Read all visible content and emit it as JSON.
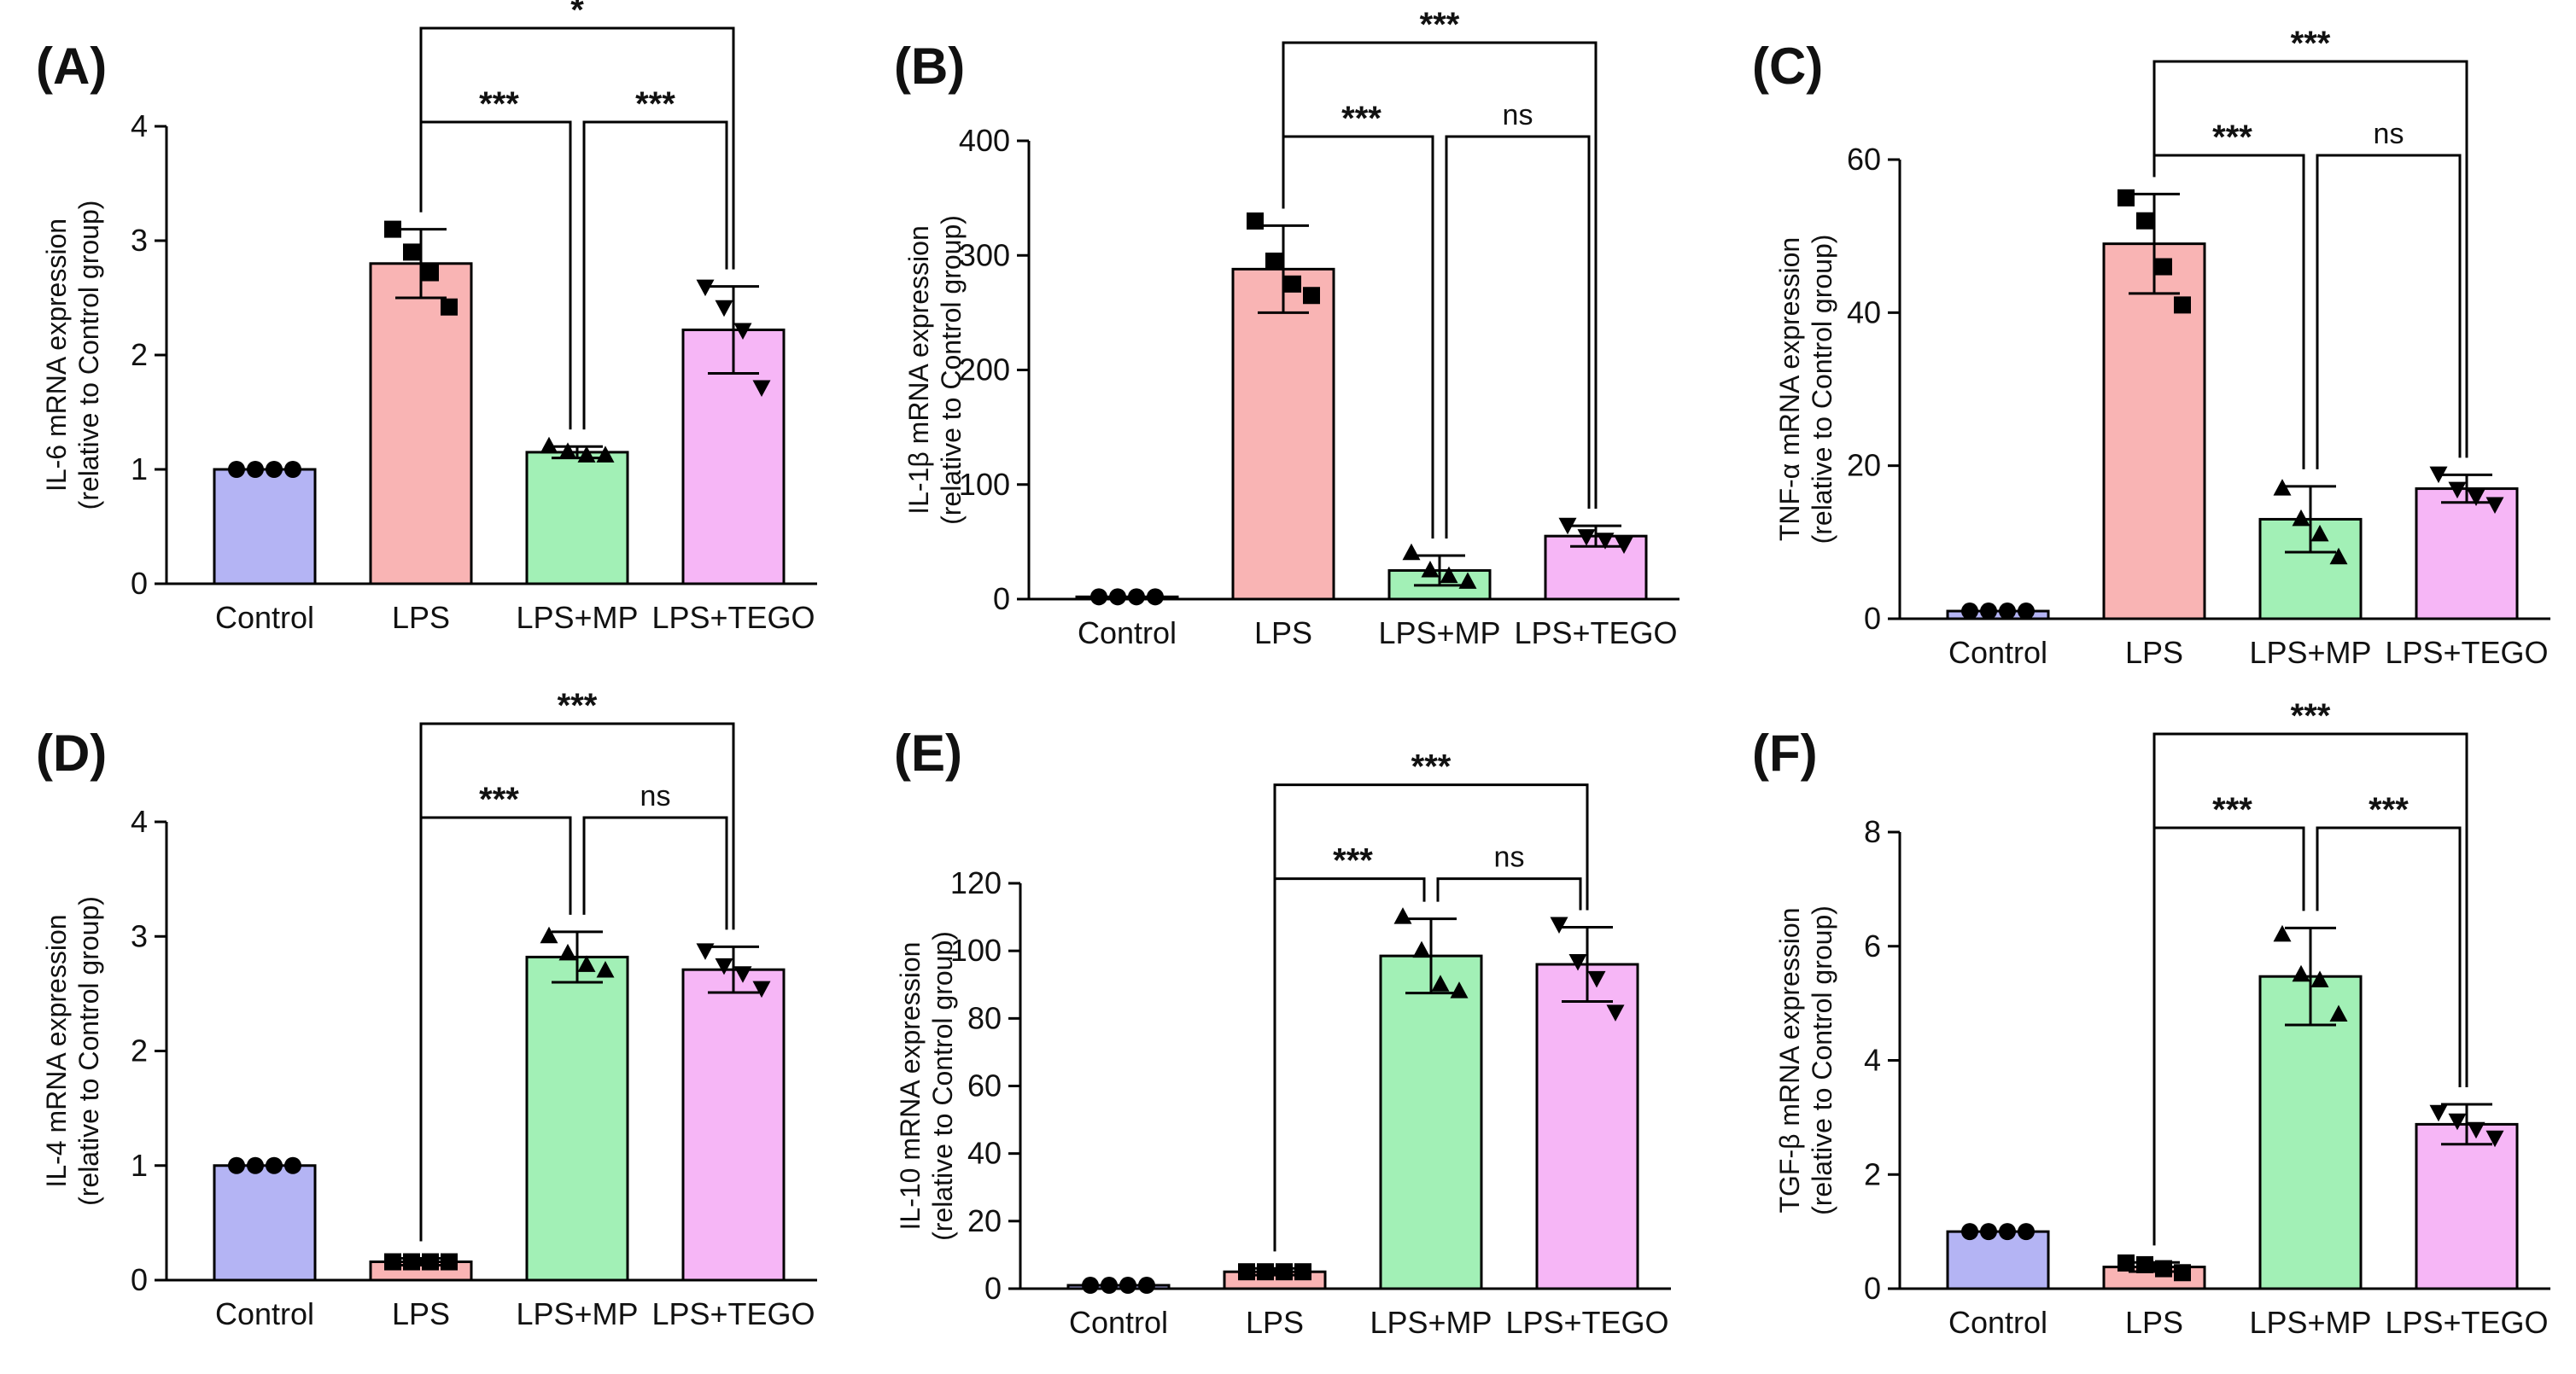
{
  "chart_data": [
    {
      "panel_label": "(A)",
      "type": "bar",
      "ylabel_line1": "IL-6 mRNA expression",
      "ylabel_line2": "(relative to Control group)",
      "ylim": [
        0,
        4
      ],
      "yticks": [
        0,
        1,
        2,
        3,
        4
      ],
      "categories": [
        "Control",
        "LPS",
        "LPS+MP",
        "LPS+TEGO"
      ],
      "values": [
        1.0,
        2.8,
        1.15,
        2.22
      ],
      "errors": [
        0.0,
        0.3,
        0.05,
        0.38
      ],
      "points": [
        [
          1.0,
          1.0,
          1.0,
          1.0
        ],
        [
          3.1,
          2.9,
          2.72,
          2.42
        ],
        [
          1.2,
          1.15,
          1.12,
          1.12
        ],
        [
          2.6,
          2.42,
          2.22,
          1.72
        ]
      ],
      "markers": [
        "circle",
        "square",
        "triangle-up",
        "triangle-down"
      ],
      "colors": [
        "#b4b4f4",
        "#f9b4b4",
        "#a2f0b6",
        "#f6b6f6"
      ],
      "comparisons": [
        {
          "from": 1,
          "to": 2,
          "label": "***",
          "level": 1
        },
        {
          "from": 2,
          "to": 3,
          "label": "***",
          "level": 1
        },
        {
          "from": 1,
          "to": 3,
          "label": "*",
          "level": 2
        }
      ]
    },
    {
      "panel_label": "(B)",
      "type": "bar",
      "ylabel_line1": "IL-1β mRNA expression",
      "ylabel_line2": "(relative to Control group)",
      "ylim": [
        0,
        400
      ],
      "yticks": [
        0,
        100,
        200,
        300,
        400
      ],
      "categories": [
        "Control",
        "LPS",
        "LPS+MP",
        "LPS+TEGO"
      ],
      "values": [
        2,
        288,
        25,
        55
      ],
      "errors": [
        0,
        38,
        13,
        9
      ],
      "points": [
        [
          2,
          2,
          2,
          2
        ],
        [
          330,
          295,
          275,
          265
        ],
        [
          40,
          25,
          20,
          15
        ],
        [
          65,
          55,
          52,
          48
        ]
      ],
      "markers": [
        "circle",
        "square",
        "triangle-up",
        "triangle-down"
      ],
      "colors": [
        "#b4b4f4",
        "#f9b4b4",
        "#a2f0b6",
        "#f6b6f6"
      ],
      "comparisons": [
        {
          "from": 1,
          "to": 2,
          "label": "***",
          "level": 1
        },
        {
          "from": 2,
          "to": 3,
          "label": "ns",
          "level": 1
        },
        {
          "from": 1,
          "to": 3,
          "label": "***",
          "level": 2
        }
      ]
    },
    {
      "panel_label": "(C)",
      "type": "bar",
      "ylabel_line1": "TNF-α mRNA expression",
      "ylabel_line2": "(relative to Control group)",
      "ylim": [
        0,
        60
      ],
      "yticks": [
        0,
        20,
        40,
        60
      ],
      "categories": [
        "Control",
        "LPS",
        "LPS+MP",
        "LPS+TEGO"
      ],
      "values": [
        1,
        49,
        13,
        17
      ],
      "errors": [
        0,
        6.5,
        4.3,
        1.8
      ],
      "points": [
        [
          1,
          1,
          1,
          1
        ],
        [
          55,
          52,
          46,
          41
        ],
        [
          17,
          13,
          11,
          8
        ],
        [
          19,
          17,
          16,
          15
        ]
      ],
      "markers": [
        "circle",
        "square",
        "triangle-up",
        "triangle-down"
      ],
      "colors": [
        "#b4b4f4",
        "#f9b4b4",
        "#a2f0b6",
        "#f6b6f6"
      ],
      "comparisons": [
        {
          "from": 1,
          "to": 2,
          "label": "***",
          "level": 1
        },
        {
          "from": 2,
          "to": 3,
          "label": "ns",
          "level": 1
        },
        {
          "from": 1,
          "to": 3,
          "label": "***",
          "level": 2
        }
      ]
    },
    {
      "panel_label": "(D)",
      "type": "bar",
      "ylabel_line1": "IL-4 mRNA expression",
      "ylabel_line2": "(relative to Control group)",
      "ylim": [
        0,
        4
      ],
      "yticks": [
        0,
        1,
        2,
        3,
        4
      ],
      "categories": [
        "Control",
        "LPS",
        "LPS+MP",
        "LPS+TEGO"
      ],
      "values": [
        1.0,
        0.16,
        2.82,
        2.71
      ],
      "errors": [
        0.0,
        0.03,
        0.22,
        0.2
      ],
      "points": [
        [
          1.0,
          1.0,
          1.0,
          1.0
        ],
        [
          0.16,
          0.16,
          0.16,
          0.16
        ],
        [
          3.0,
          2.85,
          2.75,
          2.7
        ],
        [
          2.88,
          2.75,
          2.68,
          2.55
        ]
      ],
      "markers": [
        "circle",
        "square",
        "triangle-up",
        "triangle-down"
      ],
      "colors": [
        "#b4b4f4",
        "#f9b4b4",
        "#a2f0b6",
        "#f6b6f6"
      ],
      "comparisons": [
        {
          "from": 1,
          "to": 2,
          "label": "***",
          "level": 1
        },
        {
          "from": 2,
          "to": 3,
          "label": "ns",
          "level": 1
        },
        {
          "from": 1,
          "to": 3,
          "label": "***",
          "level": 2
        }
      ]
    },
    {
      "panel_label": "(E)",
      "type": "bar",
      "ylabel_line1": "IL-10 mRNA expression",
      "ylabel_line2": "(relative to Control group)",
      "ylim": [
        0,
        120
      ],
      "yticks": [
        0,
        20,
        40,
        60,
        80,
        100,
        120
      ],
      "categories": [
        "Control",
        "LPS",
        "LPS+MP",
        "LPS+TEGO"
      ],
      "values": [
        1,
        5,
        98.5,
        96
      ],
      "errors": [
        0,
        1,
        11,
        11
      ],
      "points": [
        [
          1,
          1,
          1,
          1
        ],
        [
          5,
          5,
          5,
          5
        ],
        [
          110,
          100,
          90,
          88
        ],
        [
          108,
          97,
          92,
          82
        ]
      ],
      "markers": [
        "circle",
        "square",
        "triangle-up",
        "triangle-down"
      ],
      "colors": [
        "#b4b4f4",
        "#f9b4b4",
        "#a2f0b6",
        "#f6b6f6"
      ],
      "comparisons": [
        {
          "from": 1,
          "to": 2,
          "label": "***",
          "level": 1
        },
        {
          "from": 2,
          "to": 3,
          "label": "ns",
          "level": 1
        },
        {
          "from": 1,
          "to": 3,
          "label": "***",
          "level": 2
        }
      ]
    },
    {
      "panel_label": "(F)",
      "type": "bar",
      "ylabel_line1": "TGF-β mRNA expression",
      "ylabel_line2": "(relative to Control group)",
      "ylim": [
        0,
        8
      ],
      "yticks": [
        0,
        2,
        4,
        6,
        8
      ],
      "categories": [
        "Control",
        "LPS",
        "LPS+MP",
        "LPS+TEGO"
      ],
      "values": [
        1.0,
        0.38,
        5.47,
        2.88
      ],
      "errors": [
        0.0,
        0.08,
        0.85,
        0.35
      ],
      "points": [
        [
          1.0,
          1.0,
          1.0,
          1.0
        ],
        [
          0.45,
          0.42,
          0.35,
          0.28
        ],
        [
          6.2,
          5.5,
          5.4,
          4.8
        ],
        [
          3.1,
          2.95,
          2.8,
          2.65
        ]
      ],
      "markers": [
        "circle",
        "square",
        "triangle-up",
        "triangle-down"
      ],
      "colors": [
        "#b4b4f4",
        "#f9b4b4",
        "#a2f0b6",
        "#f6b6f6"
      ],
      "comparisons": [
        {
          "from": 1,
          "to": 2,
          "label": "***",
          "level": 1
        },
        {
          "from": 2,
          "to": 3,
          "label": "***",
          "level": 1
        },
        {
          "from": 1,
          "to": 3,
          "label": "***",
          "level": 2
        }
      ]
    }
  ]
}
